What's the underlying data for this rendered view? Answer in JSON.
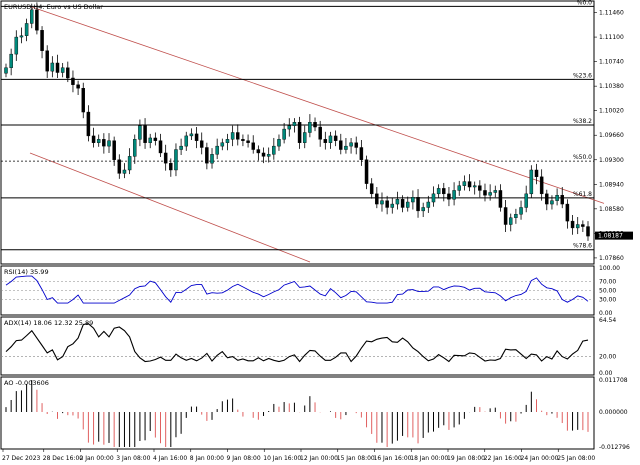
{
  "title": "EURUSD,H4:  Euro vs US Dollar",
  "colors": {
    "bull": "#00897b",
    "bear": "#000000",
    "channel": "#c0504d",
    "rsi": "#0000cc",
    "adx": "#000000",
    "ao_up": "#000000",
    "ao_down": "#e06060",
    "current_price_bg": "#000000"
  },
  "price_axis": [
    "1.11460",
    "1.11100",
    "1.10740",
    "1.10380",
    "1.10020",
    "1.09660",
    "1.09300",
    "1.08940",
    "1.08580",
    "1.08220",
    "1.07860"
  ],
  "current_price": "1.08187",
  "fib_levels": [
    {
      "label": "%0.0",
      "price": 1.1155
    },
    {
      "label": "%23.6",
      "price": 1.1048
    },
    {
      "label": "%38.2",
      "price": 1.0981
    },
    {
      "label": "%50.0",
      "price": 1.0928
    },
    {
      "label": "%61.8",
      "price": 1.0874
    },
    {
      "label": "%78.6",
      "price": 1.0798
    }
  ],
  "rsi": {
    "title": "RSI(14) 35.99",
    "axis": [
      "100.00",
      "70.00",
      "50.00",
      "30.00",
      "0.00"
    ]
  },
  "adx": {
    "title": "ADX(14) 18.06  12.32  25.89",
    "axis": [
      "64.54",
      "20.00",
      "0.00"
    ]
  },
  "ao": {
    "title": "AO -0.003606",
    "axis": [
      "0.011708",
      "0.000000",
      "-0.012796"
    ]
  },
  "time_axis": [
    "27 Dec 2023",
    "28 Dec 16:00",
    "2 Jan 00:00",
    "3 Jan 08:00",
    "4 Jan 16:00",
    "8 Jan 00:00",
    "9 Jan 08:00",
    "10 Jan 16:00",
    "12 Jan 00:00",
    "15 Jan 08:00",
    "16 Jan 16:00",
    "18 Jan 00:00",
    "19 Jan 08:00",
    "22 Jan 16:00",
    "24 Jan 00:00",
    "25 Jan 08:00"
  ],
  "chart_data": {
    "type": "candlestick",
    "symbol": "EURUSD",
    "timeframe": "H4",
    "ylim": [
      1.078,
      1.116
    ],
    "close": [
      1.1065,
      1.1085,
      1.111,
      1.1112,
      1.113,
      1.115,
      1.112,
      1.109,
      1.106,
      1.1072,
      1.1058,
      1.1065,
      1.105,
      1.104,
      1.1035,
      1.1,
      1.0965,
      1.0955,
      1.096,
      1.095,
      1.0958,
      1.093,
      1.091,
      1.0915,
      1.0935,
      1.096,
      1.098,
      1.0955,
      1.0962,
      1.0958,
      1.094,
      1.0925,
      1.0915,
      1.0945,
      1.095,
      1.0965,
      1.0968,
      1.0958,
      1.0948,
      1.0925,
      1.0938,
      1.095,
      1.0955,
      1.096,
      1.097,
      1.096,
      1.0958,
      1.0955,
      1.0945,
      1.094,
      1.0935,
      1.0938,
      1.095,
      1.096,
      1.0975,
      1.098,
      1.0985,
      1.0955,
      1.097,
      1.0985,
      1.0978,
      1.096,
      1.0955,
      1.0965,
      1.0958,
      1.0945,
      1.095,
      1.0955,
      1.0948,
      1.093,
      1.0895,
      1.088,
      1.0865,
      1.087,
      1.086,
      1.0865,
      1.0872,
      1.086,
      1.0868,
      1.0875,
      1.0855,
      1.086,
      1.0868,
      1.088,
      1.0888,
      1.088,
      1.0872,
      1.0885,
      1.0892,
      1.0898,
      1.089,
      1.0892,
      1.0885,
      1.0878,
      1.0882,
      1.0885,
      1.086,
      1.0835,
      1.0845,
      1.085,
      1.086,
      1.088,
      1.0915,
      1.0905,
      1.088,
      1.0865,
      1.087,
      1.0878,
      1.0865,
      1.084,
      1.083,
      1.0835,
      1.0832,
      1.0818
    ]
  }
}
